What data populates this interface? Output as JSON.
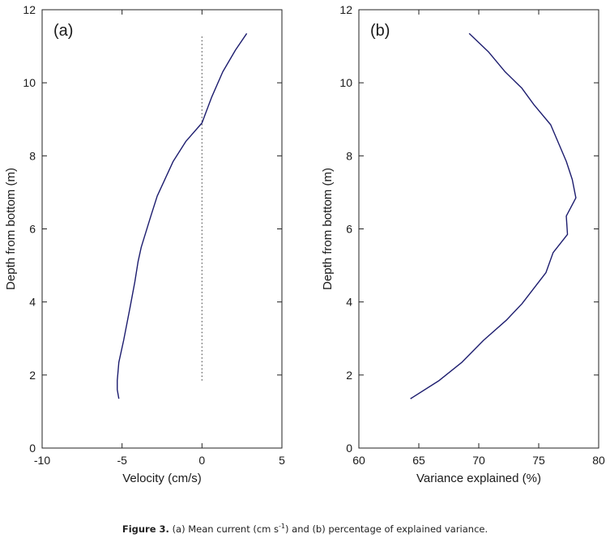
{
  "chart_data": [
    {
      "type": "line",
      "panel_label": "(a)",
      "xlabel": "Velocity (cm/s)",
      "ylabel": "Depth from bottom (m)",
      "xlim": [
        -10,
        5
      ],
      "ylim": [
        0,
        12
      ],
      "x_ticks": [
        -10,
        -5,
        0,
        5
      ],
      "y_ticks": [
        0,
        2,
        4,
        6,
        8,
        10,
        12
      ],
      "reference_line": {
        "x": 0,
        "y_range": [
          1.85,
          11.3
        ],
        "style": "dotted"
      },
      "series": [
        {
          "color": "#1c1c6e",
          "points": [
            [
              -5.2,
              1.35
            ],
            [
              -5.3,
              1.6
            ],
            [
              -5.3,
              1.85
            ],
            [
              -5.2,
              2.35
            ],
            [
              -4.9,
              2.95
            ],
            [
              -4.5,
              3.85
            ],
            [
              -4.2,
              4.55
            ],
            [
              -4.0,
              5.1
            ],
            [
              -3.8,
              5.5
            ],
            [
              -3.2,
              6.35
            ],
            [
              -2.8,
              6.9
            ],
            [
              -1.8,
              7.85
            ],
            [
              -1.0,
              8.4
            ],
            [
              0.0,
              8.9
            ],
            [
              0.6,
              9.6
            ],
            [
              1.3,
              10.3
            ],
            [
              2.1,
              10.9
            ],
            [
              2.8,
              11.35
            ]
          ]
        }
      ]
    },
    {
      "type": "line",
      "panel_label": "(b)",
      "xlabel": "Variance explained (%)",
      "ylabel": "Depth from bottom (m)",
      "xlim": [
        60,
        80
      ],
      "ylim": [
        0,
        12
      ],
      "x_ticks": [
        60,
        65,
        70,
        75,
        80
      ],
      "y_ticks": [
        0,
        2,
        4,
        6,
        8,
        10,
        12
      ],
      "series": [
        {
          "color": "#1c1c6e",
          "points": [
            [
              64.3,
              1.35
            ],
            [
              66.7,
              1.85
            ],
            [
              68.6,
              2.35
            ],
            [
              70.4,
              2.95
            ],
            [
              72.3,
              3.5
            ],
            [
              73.6,
              3.95
            ],
            [
              75.6,
              4.8
            ],
            [
              76.2,
              5.35
            ],
            [
              77.4,
              5.85
            ],
            [
              77.3,
              6.35
            ],
            [
              78.1,
              6.85
            ],
            [
              77.8,
              7.35
            ],
            [
              77.3,
              7.85
            ],
            [
              76.0,
              8.85
            ],
            [
              74.6,
              9.4
            ],
            [
              73.6,
              9.85
            ],
            [
              72.2,
              10.3
            ],
            [
              70.8,
              10.85
            ],
            [
              69.2,
              11.35
            ]
          ]
        }
      ]
    }
  ],
  "caption": {
    "label": "Figure 3.",
    "text_part1": "(a) Mean current (cm s",
    "superscript": "-1",
    "text_part2": ") and (b) percentage of explained variance."
  }
}
